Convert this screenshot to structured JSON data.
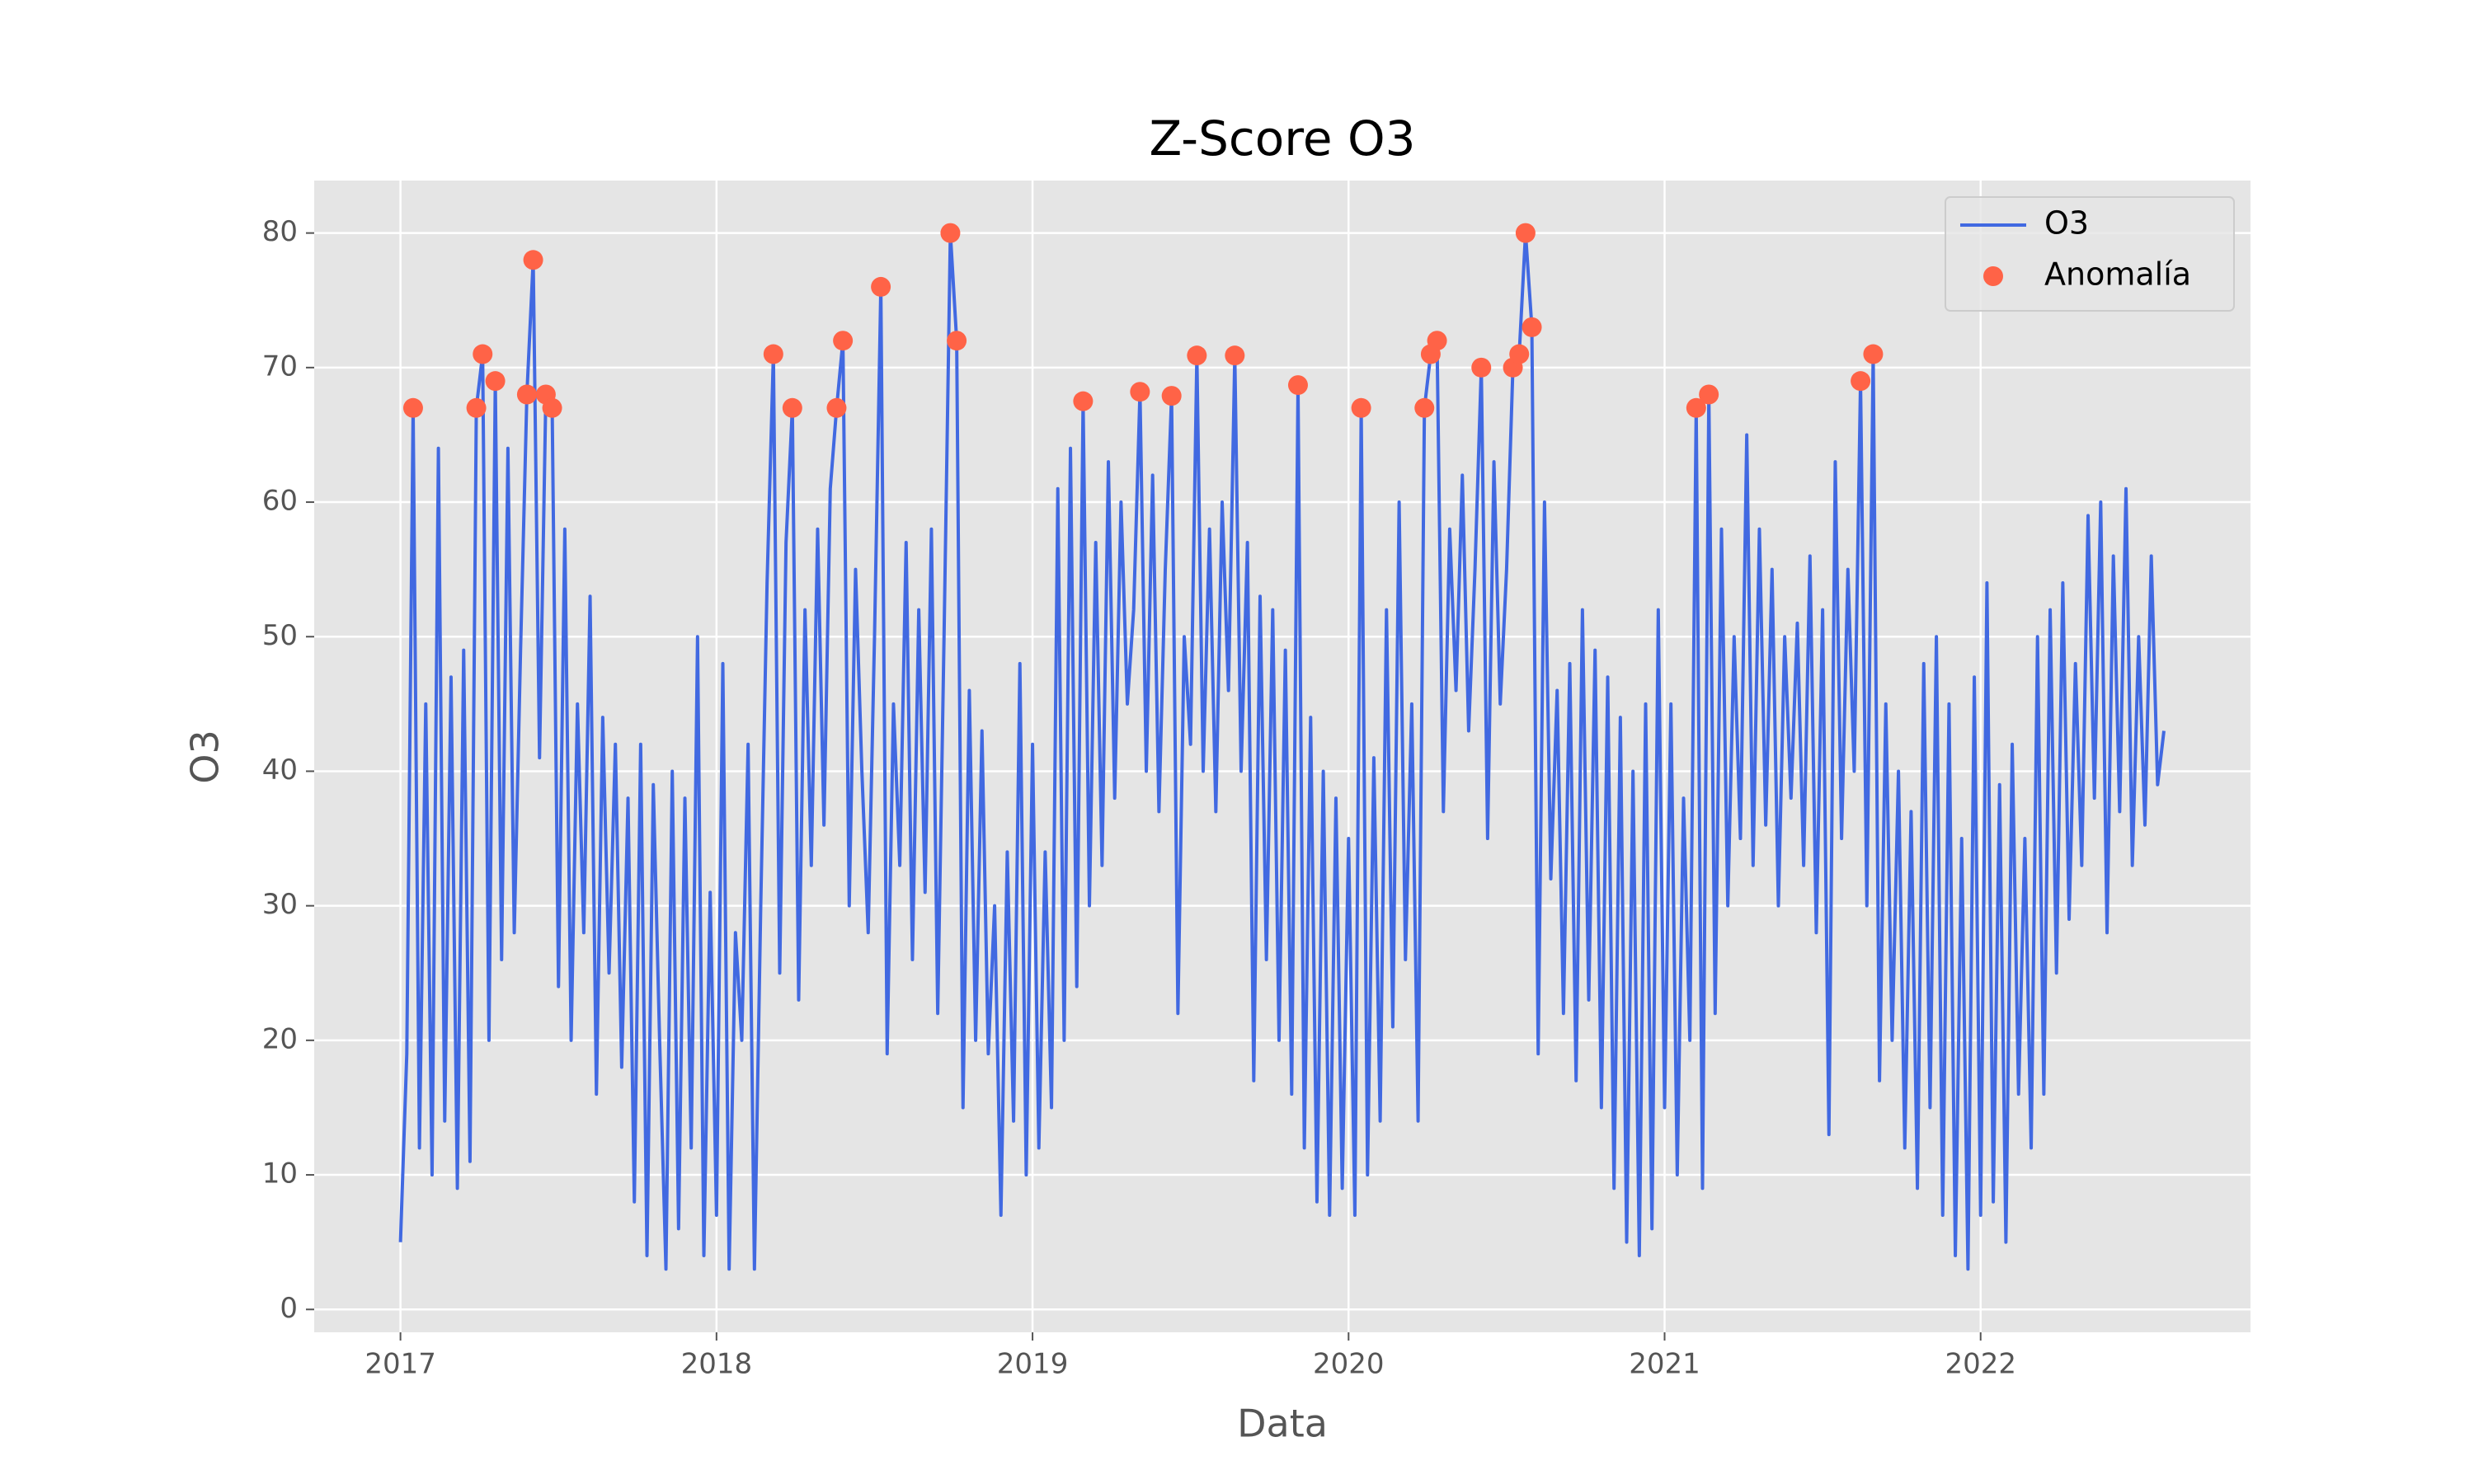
{
  "chart_data": {
    "type": "line",
    "title": "Z-Score O3",
    "xlabel": "Data",
    "ylabel": "O3",
    "xlim": [
      2016.727,
      2022.854
    ],
    "xticks": [
      2017,
      2018,
      2019,
      2020,
      2021,
      2022
    ],
    "ylim": [
      -1.7,
      83.9
    ],
    "yticks": [
      0,
      10,
      20,
      30,
      40,
      50,
      60,
      70,
      80
    ],
    "grid": true,
    "legend": "upper right",
    "series": [
      {
        "name": "O3",
        "color": "#4169e1",
        "kind": "line",
        "x": [
          2017,
          2017.02,
          2017.04,
          2017.06,
          2017.08,
          2017.1,
          2017.12,
          2017.14,
          2017.16,
          2017.18,
          2017.2,
          2017.22,
          2017.24,
          2017.26,
          2017.28,
          2017.3,
          2017.32,
          2017.34,
          2017.36,
          2017.38,
          2017.4,
          2017.42,
          2017.44,
          2017.46,
          2017.48,
          2017.5,
          2017.52,
          2017.54,
          2017.56,
          2017.58,
          2017.6,
          2017.62,
          2017.64,
          2017.66,
          2017.68,
          2017.7,
          2017.72,
          2017.74,
          2017.76,
          2017.78,
          2017.8,
          2017.82,
          2017.84,
          2017.86,
          2017.88,
          2017.9,
          2017.92,
          2017.94,
          2017.96,
          2017.98,
          2018,
          2018.02,
          2018.04,
          2018.06,
          2018.08,
          2018.1,
          2018.12,
          2018.14,
          2018.16,
          2018.18,
          2018.2,
          2018.22,
          2018.24,
          2018.26,
          2018.28,
          2018.3,
          2018.32,
          2018.34,
          2018.36,
          2018.38,
          2018.4,
          2018.42,
          2018.44,
          2018.46,
          2018.48,
          2018.5,
          2018.52,
          2018.54,
          2018.56,
          2018.58,
          2018.6,
          2018.62,
          2018.64,
          2018.66,
          2018.68,
          2018.7,
          2018.72,
          2018.74,
          2018.76,
          2018.78,
          2018.8,
          2018.82,
          2018.84,
          2018.86,
          2018.88,
          2018.9,
          2018.92,
          2018.94,
          2018.96,
          2018.98,
          2019,
          2019.02,
          2019.04,
          2019.06,
          2019.08,
          2019.1,
          2019.12,
          2019.14,
          2019.16,
          2019.18,
          2019.2,
          2019.22,
          2019.24,
          2019.26,
          2019.28,
          2019.3,
          2019.32,
          2019.34,
          2019.36,
          2019.38,
          2019.4,
          2019.42,
          2019.44,
          2019.46,
          2019.48,
          2019.5,
          2019.52,
          2019.54,
          2019.56,
          2019.58,
          2019.6,
          2019.62,
          2019.64,
          2019.66,
          2019.68,
          2019.7,
          2019.72,
          2019.74,
          2019.76,
          2019.78,
          2019.8,
          2019.82,
          2019.84,
          2019.86,
          2019.88,
          2019.9,
          2019.92,
          2019.94,
          2019.96,
          2019.98,
          2020,
          2020.02,
          2020.04,
          2020.06,
          2020.08,
          2020.1,
          2020.12,
          2020.14,
          2020.16,
          2020.18,
          2020.2,
          2020.22,
          2020.24,
          2020.26,
          2020.28,
          2020.3,
          2020.32,
          2020.34,
          2020.36,
          2020.38,
          2020.4,
          2020.42,
          2020.44,
          2020.46,
          2020.48,
          2020.5,
          2020.52,
          2020.54,
          2020.56,
          2020.58,
          2020.6,
          2020.62,
          2020.64,
          2020.66,
          2020.68,
          2020.7,
          2020.72,
          2020.74,
          2020.76,
          2020.78,
          2020.8,
          2020.82,
          2020.84,
          2020.86,
          2020.88,
          2020.9,
          2020.92,
          2020.94,
          2020.96,
          2020.98,
          2021,
          2021.02,
          2021.04,
          2021.06,
          2021.08,
          2021.1,
          2021.12,
          2021.14,
          2021.16,
          2021.18,
          2021.2,
          2021.22,
          2021.24,
          2021.26,
          2021.28,
          2021.3,
          2021.32,
          2021.34,
          2021.36,
          2021.38,
          2021.4,
          2021.42,
          2021.44,
          2021.46,
          2021.48,
          2021.5,
          2021.52,
          2021.54,
          2021.56,
          2021.58,
          2021.6,
          2021.62,
          2021.64,
          2021.66,
          2021.68,
          2021.7,
          2021.72,
          2021.74,
          2021.76,
          2021.78,
          2021.8,
          2021.82,
          2021.84,
          2021.86,
          2021.88,
          2021.9,
          2021.92,
          2021.94,
          2021.96,
          2021.98,
          2022,
          2022.02,
          2022.04,
          2022.06,
          2022.08,
          2022.1,
          2022.12,
          2022.14,
          2022.16,
          2022.18,
          2022.2,
          2022.22,
          2022.24,
          2022.26,
          2022.28,
          2022.3,
          2022.32,
          2022.34,
          2022.36,
          2022.38,
          2022.4,
          2022.42,
          2022.44,
          2022.46,
          2022.48,
          2022.5,
          2022.52,
          2022.54,
          2022.56,
          2022.58
        ],
        "values": [
          5,
          19,
          67,
          12,
          45,
          10,
          64,
          14,
          47,
          9,
          49,
          11,
          67,
          71,
          20,
          69,
          26,
          64,
          28,
          49,
          68,
          78,
          41,
          68,
          67,
          24,
          58,
          20,
          45,
          28,
          53,
          16,
          44,
          25,
          42,
          18,
          38,
          8,
          42,
          4,
          39,
          20,
          3,
          40,
          6,
          38,
          12,
          50,
          4,
          31,
          7,
          48,
          3,
          28,
          20,
          42,
          3,
          30,
          54,
          71,
          25,
          57,
          67,
          23,
          52,
          33,
          58,
          36,
          61,
          67,
          72,
          30,
          55,
          40,
          28,
          50,
          76,
          19,
          45,
          33,
          57,
          26,
          52,
          31,
          58,
          22,
          50,
          80,
          72,
          15,
          46,
          20,
          43,
          19,
          30,
          7,
          34,
          14,
          48,
          10,
          42,
          12,
          34,
          15,
          61,
          20,
          64,
          24,
          67.5,
          30,
          57,
          33,
          63,
          38,
          60,
          45,
          52,
          68.2,
          40,
          62,
          37,
          55,
          67.9,
          22,
          50,
          42,
          70.9,
          40,
          58,
          37,
          60,
          46,
          70.9,
          40,
          57,
          17,
          53,
          26,
          52,
          20,
          49,
          16,
          68.7,
          12,
          44,
          8,
          40,
          7,
          38,
          9,
          35,
          7,
          67,
          10,
          41,
          14,
          52,
          21,
          60,
          26,
          45,
          14,
          67,
          71,
          72,
          37,
          58,
          46,
          62,
          43,
          55,
          70,
          35,
          63,
          45,
          55,
          70,
          71,
          80,
          73,
          19,
          60,
          32,
          46,
          22,
          48,
          17,
          52,
          23,
          49,
          15,
          47,
          9,
          44,
          5,
          40,
          4,
          45,
          6,
          52,
          15,
          45,
          10,
          38,
          20,
          67,
          9,
          68,
          22,
          58,
          30,
          50,
          35,
          65,
          33,
          58,
          36,
          55,
          30,
          50,
          38,
          51,
          33,
          56,
          28,
          52,
          13,
          63,
          35,
          55,
          40,
          69,
          30,
          71,
          17,
          45,
          20,
          40,
          12,
          37,
          9,
          48,
          15,
          50,
          7,
          45,
          4,
          35,
          3,
          47,
          7,
          54,
          8,
          39,
          5,
          42,
          16,
          35,
          12,
          50,
          16,
          52,
          25,
          54,
          29,
          48,
          33,
          59,
          38,
          60,
          28,
          56,
          37,
          61,
          33,
          50,
          36,
          56,
          39,
          43
        ]
      },
      {
        "name": "Anomalía",
        "color": "#ff6347",
        "kind": "scatter",
        "x": [
          2017.04,
          2017.24,
          2017.26,
          2017.3,
          2017.4,
          2017.42,
          2017.46,
          2017.48,
          2018.18,
          2018.24,
          2018.38,
          2018.4,
          2018.52,
          2018.74,
          2018.76,
          2019.16,
          2019.34,
          2019.44,
          2019.52,
          2019.64,
          2019.84,
          2020.04,
          2020.24,
          2020.26,
          2020.28,
          2020.42,
          2020.52,
          2020.54,
          2020.56,
          2020.58,
          2021.1,
          2021.14,
          2021.62,
          2021.66
        ],
        "values": [
          67,
          67,
          71,
          69,
          68,
          78,
          68,
          67,
          71,
          67,
          67,
          72,
          76,
          80,
          72,
          67.5,
          68.2,
          67.9,
          70.9,
          70.9,
          68.7,
          67,
          67,
          71,
          72,
          70,
          70,
          71,
          80,
          73,
          67,
          68,
          69,
          71
        ]
      }
    ]
  }
}
